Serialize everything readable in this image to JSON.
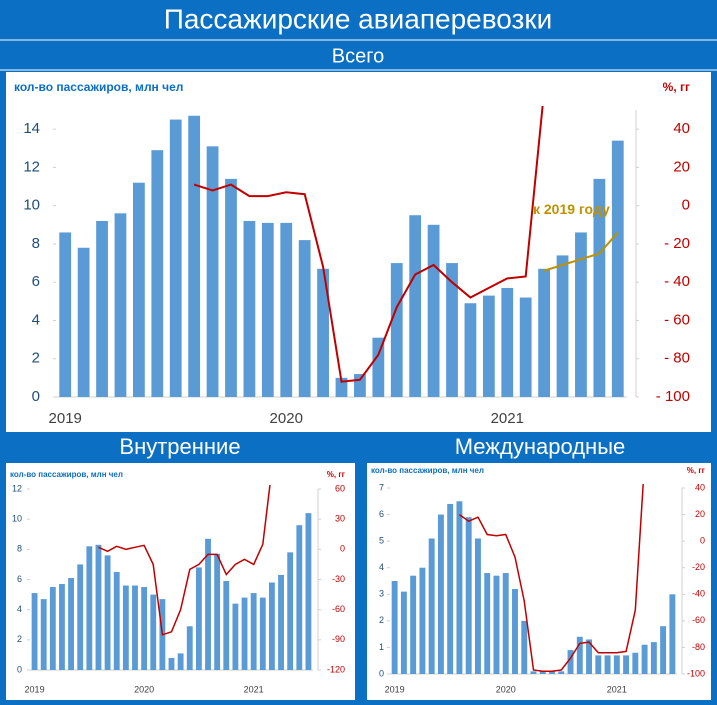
{
  "title": "Пассажирские авиаперевозки",
  "chart_data": [
    {
      "type": "bar",
      "title": "Всего",
      "ylabel": "кол-во пассажиров, млн чел",
      "y2label": "%, гг",
      "categories": [
        "2019",
        null,
        null,
        null,
        null,
        null,
        null,
        null,
        null,
        null,
        null,
        null,
        "2020",
        null,
        null,
        null,
        null,
        null,
        null,
        null,
        null,
        null,
        null,
        null,
        "2021",
        null,
        null,
        null,
        null,
        null,
        null
      ],
      "series": [
        {
          "color": "#5b9bd5",
          "values": [
            8.6,
            7.8,
            9.2,
            9.6,
            11.2,
            12.9,
            14.5,
            14.7,
            13.1,
            11.4,
            9.2,
            9.1,
            9.1,
            8.2,
            6.7,
            1.0,
            1.2,
            3.1,
            7.0,
            9.5,
            9.0,
            7.0,
            4.9,
            5.3,
            5.7,
            5.2,
            6.7,
            7.4,
            8.6,
            11.4,
            13.4
          ]
        },
        {
          "type": "line",
          "axis": "y2",
          "color": "#c00000",
          "values": [
            null,
            null,
            null,
            null,
            null,
            null,
            null,
            11,
            8,
            11,
            5,
            5,
            7,
            6,
            -32,
            -92,
            -91,
            -78,
            -53,
            -36,
            -31,
            -40,
            -48,
            -43,
            -38,
            -37,
            60,
            null,
            null,
            null,
            null
          ]
        },
        {
          "type": "line",
          "axis": "y2",
          "color": "#bf9000",
          "values": [
            null,
            null,
            null,
            null,
            null,
            null,
            null,
            null,
            null,
            null,
            null,
            null,
            null,
            null,
            null,
            null,
            null,
            null,
            null,
            null,
            null,
            null,
            null,
            null,
            null,
            null,
            -34,
            -31,
            -28,
            -25,
            -14
          ]
        }
      ],
      "annotations": [
        {
          "text": "к 2019 году",
          "color": "#bf9000"
        }
      ],
      "ylim": [
        0,
        15
      ],
      "yticks": [
        0,
        2,
        4,
        6,
        8,
        10,
        12,
        14
      ],
      "y2lim": [
        -100,
        50
      ],
      "y2ticks": [
        {
          "value": -100,
          "label": "- 100"
        },
        {
          "value": -80,
          "label": "- 80"
        },
        {
          "value": -60,
          "label": "- 60"
        },
        {
          "value": -40,
          "label": "- 40"
        },
        {
          "value": -20,
          "label": "- 20"
        },
        0,
        20,
        40
      ]
    },
    {
      "type": "bar",
      "title": "Внутренние",
      "ylabel": "кол-во пассажиров, млн чел",
      "y2label": "%, гг",
      "categories": [
        "2019",
        null,
        null,
        null,
        null,
        null,
        null,
        null,
        null,
        null,
        null,
        null,
        "2020",
        null,
        null,
        null,
        null,
        null,
        null,
        null,
        null,
        null,
        null,
        null,
        "2021",
        null,
        null,
        null,
        null,
        null,
        null
      ],
      "series": [
        {
          "color": "#5b9bd5",
          "values": [
            5.1,
            4.7,
            5.5,
            5.7,
            6.1,
            7.0,
            8.2,
            8.3,
            7.6,
            6.5,
            5.6,
            5.6,
            5.5,
            5.0,
            4.7,
            0.8,
            1.1,
            2.9,
            6.8,
            8.7,
            7.7,
            5.9,
            4.4,
            4.8,
            5.1,
            4.8,
            5.8,
            6.3,
            7.8,
            9.6,
            10.4
          ]
        },
        {
          "type": "line",
          "axis": "y2",
          "color": "#c00000",
          "values": [
            null,
            null,
            null,
            null,
            null,
            null,
            null,
            2,
            -2,
            3,
            0,
            2,
            4,
            -15,
            -85,
            -82,
            -60,
            -20,
            -15,
            -5,
            -5,
            -25,
            -15,
            -10,
            -15,
            5,
            80,
            null,
            null,
            null,
            null
          ]
        }
      ],
      "ylim": [
        0,
        12
      ],
      "yticks": [
        0,
        2,
        4,
        6,
        8,
        10,
        12
      ],
      "y2lim": [
        -120,
        60
      ],
      "y2ticks": [
        -120,
        -90,
        -60,
        -30,
        0,
        30,
        60
      ]
    },
    {
      "type": "bar",
      "title": "Международные",
      "ylabel": "кол-во пассажиров, млн чел",
      "y2label": "%, гг",
      "categories": [
        "2019",
        null,
        null,
        null,
        null,
        null,
        null,
        null,
        null,
        null,
        null,
        null,
        "2020",
        null,
        null,
        null,
        null,
        null,
        null,
        null,
        null,
        null,
        null,
        null,
        "2021",
        null,
        null,
        null,
        null,
        null,
        null
      ],
      "series": [
        {
          "color": "#5b9bd5",
          "values": [
            3.5,
            3.1,
            3.7,
            4.0,
            5.1,
            6.0,
            6.4,
            6.5,
            5.9,
            5.1,
            3.8,
            3.7,
            3.8,
            3.2,
            2.0,
            0.1,
            0.1,
            0.1,
            0.1,
            0.9,
            1.4,
            1.3,
            0.7,
            0.7,
            0.7,
            0.7,
            0.8,
            1.1,
            1.2,
            1.8,
            3.0
          ]
        },
        {
          "type": "line",
          "axis": "y2",
          "color": "#c00000",
          "values": [
            null,
            null,
            null,
            null,
            null,
            null,
            null,
            20,
            15,
            18,
            5,
            4,
            5,
            -12,
            -45,
            -97,
            -98,
            -98,
            -97,
            -88,
            -77,
            -76,
            -84,
            -84,
            -84,
            -83,
            -52,
            60,
            null,
            null,
            null
          ]
        }
      ],
      "ylim": [
        0,
        7
      ],
      "yticks": [
        0,
        1,
        2,
        3,
        4,
        5,
        6,
        7
      ],
      "y2lim": [
        -100,
        40
      ],
      "y2ticks": [
        -100,
        -80,
        -60,
        -40,
        -20,
        0,
        20,
        40
      ]
    }
  ]
}
